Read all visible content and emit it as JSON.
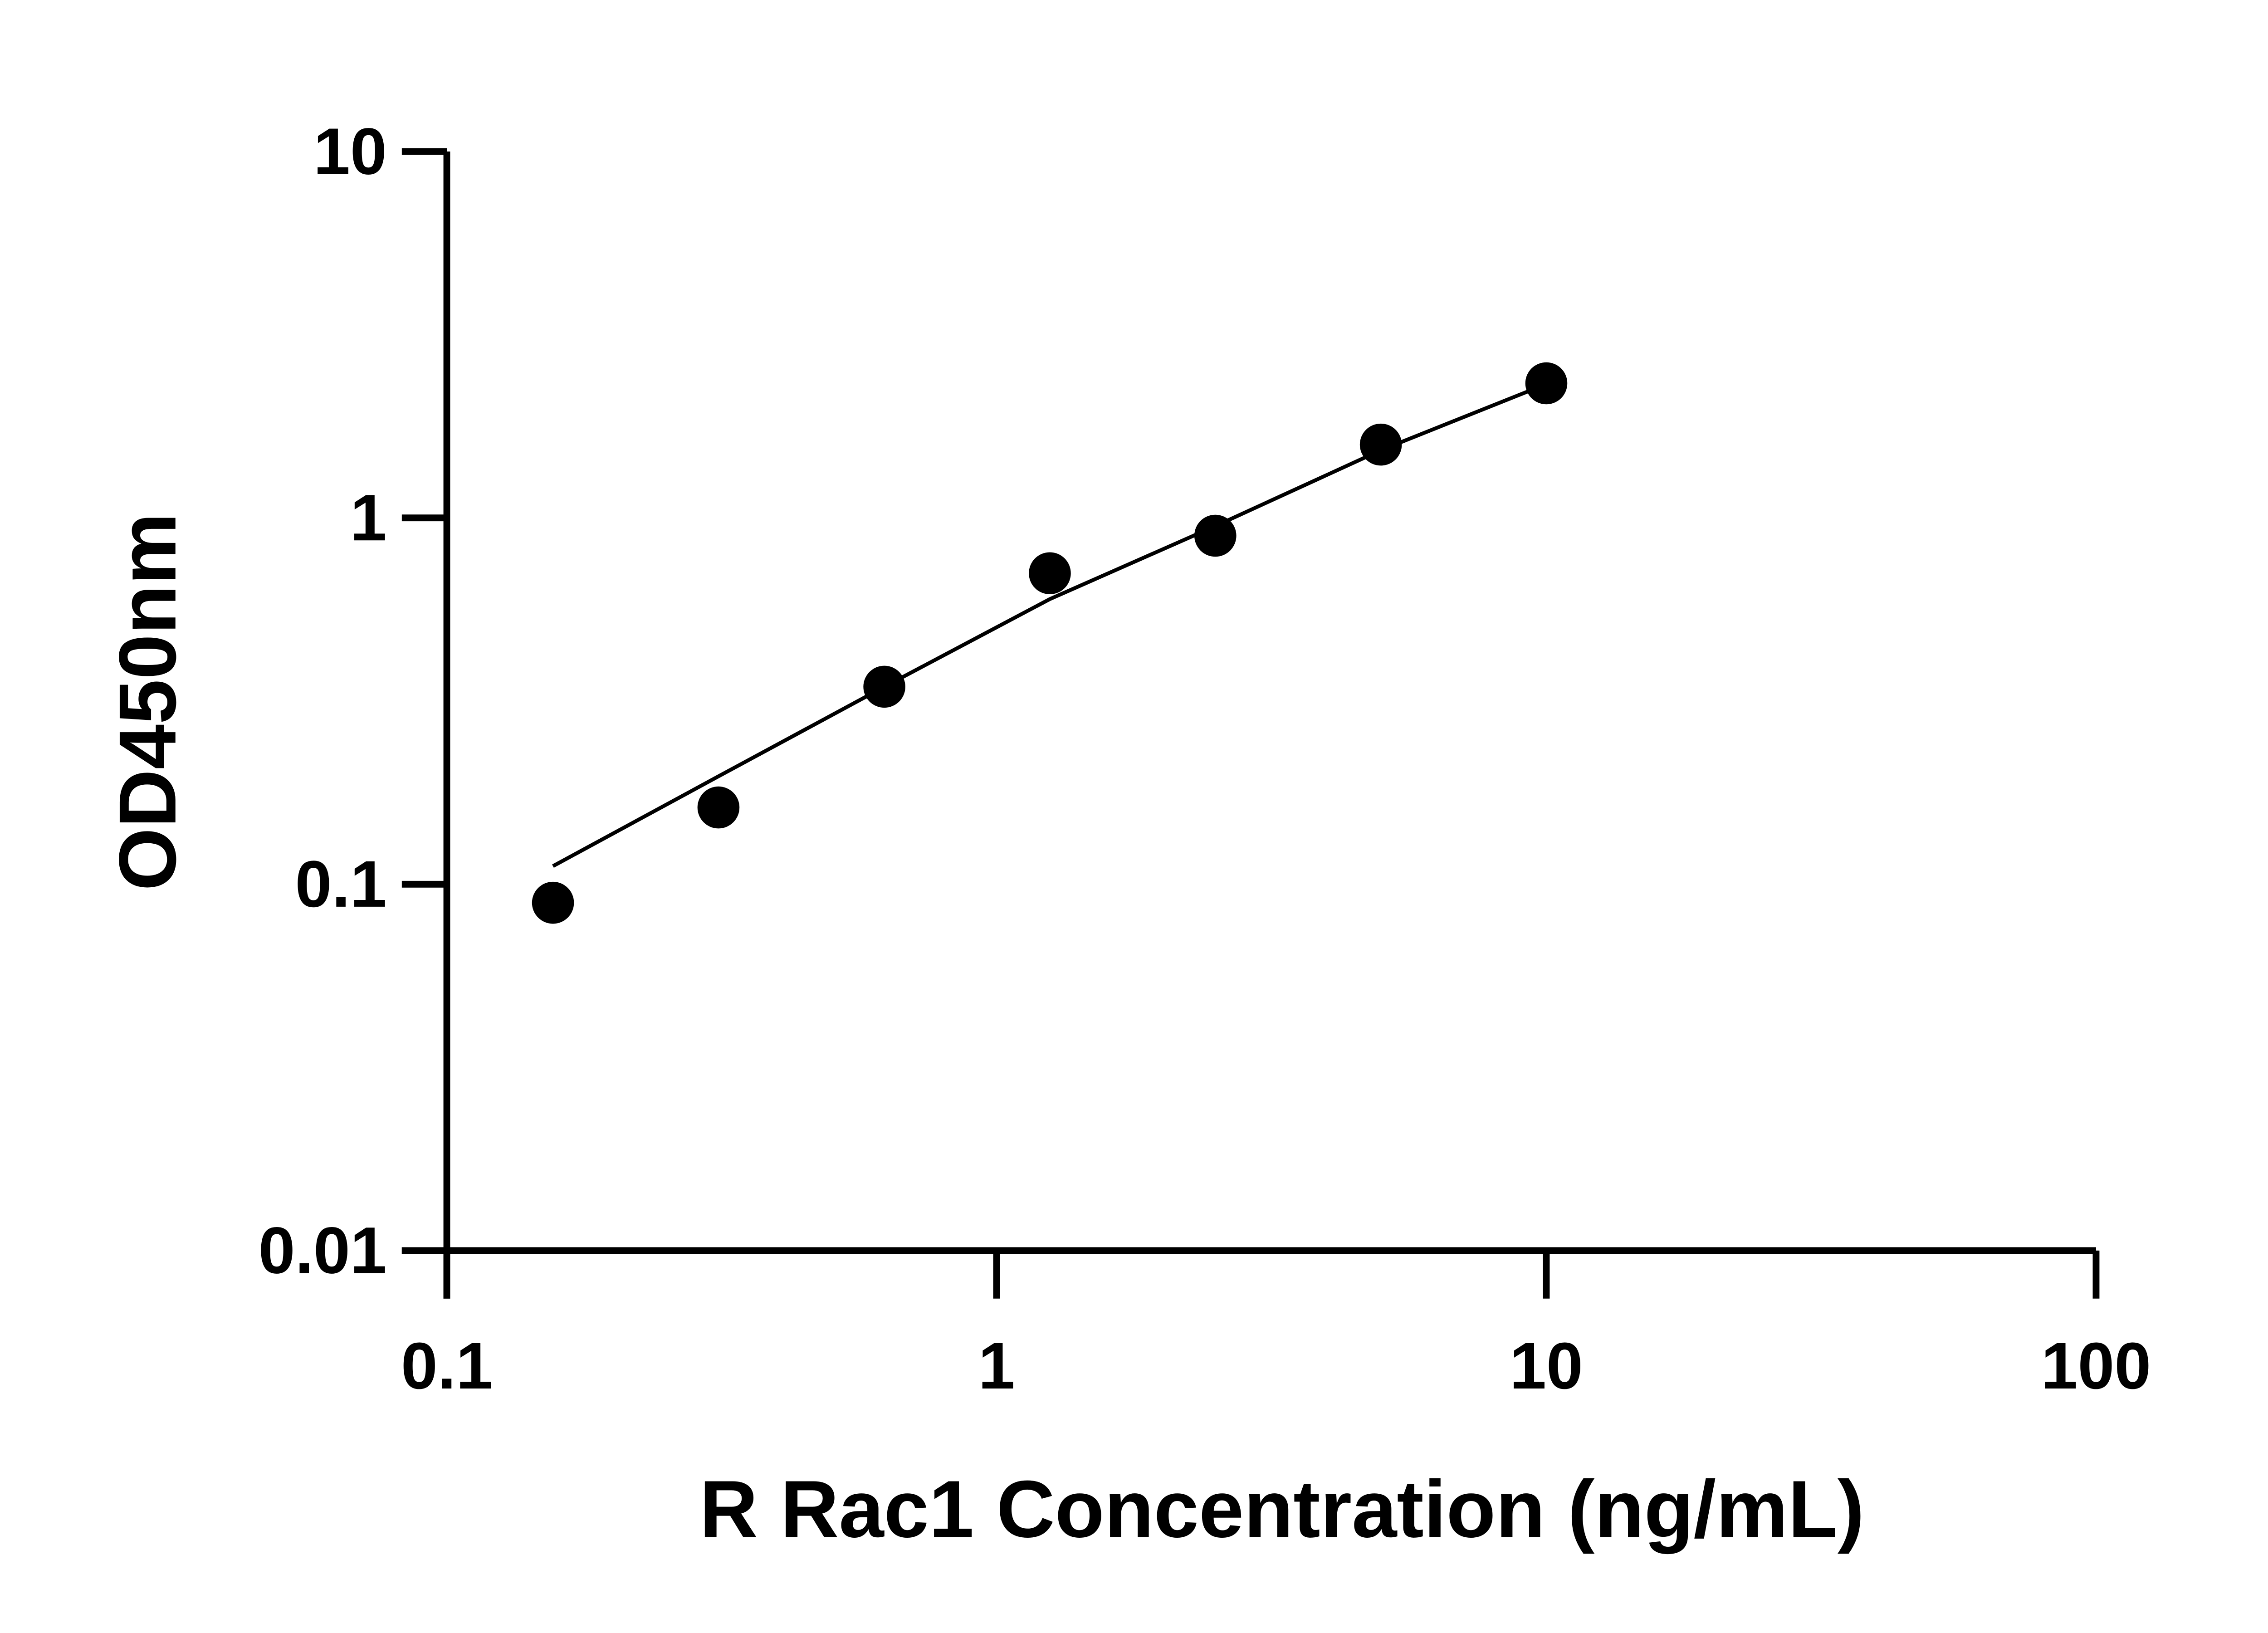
{
  "chart_data": {
    "type": "scatter",
    "title": "",
    "xlabel": "R Rac1 Concentration (ng/mL)",
    "ylabel": "OD450nm",
    "x_scale": "log",
    "y_scale": "log",
    "xlim": [
      0.1,
      100
    ],
    "ylim": [
      0.01,
      10
    ],
    "x_ticks": [
      "0.1",
      "1",
      "10",
      "100"
    ],
    "y_ticks": [
      "0.01",
      "0.1",
      "1",
      "10"
    ],
    "grid": false,
    "legend": "none",
    "point_color": "#000000",
    "series": [
      {
        "x": [
          0.156,
          0.312,
          0.625,
          1.25,
          2.5,
          5,
          10
        ],
        "y": [
          0.089,
          0.162,
          0.346,
          0.706,
          0.894,
          1.585,
          2.33
        ]
      }
    ],
    "fit_curve": {
      "x": [
        0.156,
        0.312,
        0.625,
        1.25,
        2.5,
        5,
        9.3
      ],
      "y": [
        0.112,
        0.197,
        0.346,
        0.6,
        0.95,
        1.53,
        2.22
      ]
    }
  }
}
